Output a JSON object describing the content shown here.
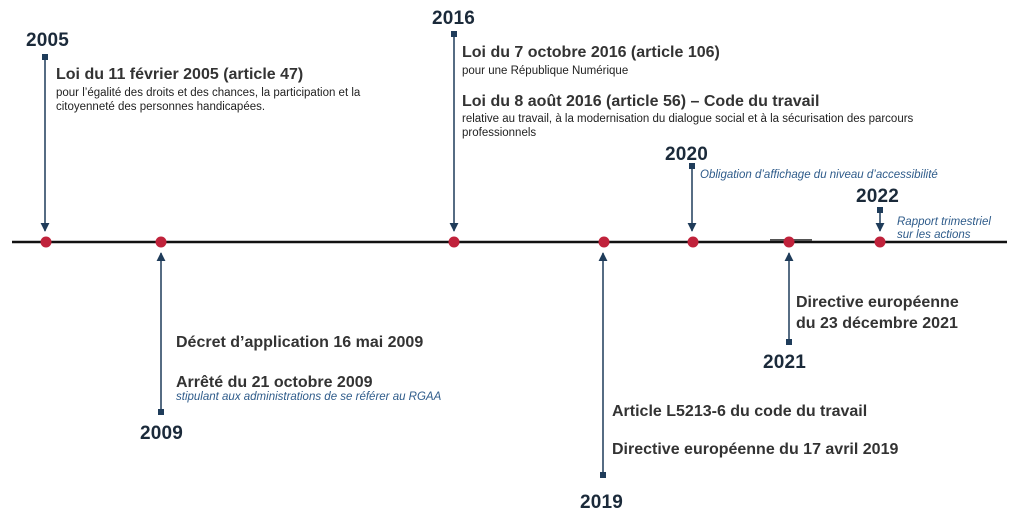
{
  "colors": {
    "axis": "#111111",
    "node": "#c0223b",
    "connector": "#1f3c5a",
    "note": "#2e5b8a",
    "year": "#1b2a3a"
  },
  "timeline": {
    "y2005": {
      "year": "2005",
      "title": "Loi du 11 février 2005 (article 47)",
      "desc": "pour l’égalité des droits et des chances, la participation et la citoyenneté des personnes handicapées."
    },
    "y2009": {
      "year": "2009",
      "decret": "Décret d’application 16 mai 2009",
      "arrete": "Arrêté du 21 octobre 2009",
      "note": "stipulant aux administrations de se référer au RGAA"
    },
    "y2016": {
      "year": "2016",
      "loi1_title": "Loi du 7 octobre 2016 (article 106)",
      "loi1_desc": "pour une République Numérique",
      "loi2_title": "Loi du 8 août 2016 (article 56) – Code du travail",
      "loi2_desc": "relative au travail, à la modernisation du dialogue social et à la sécurisation des parcours professionnels"
    },
    "y2019": {
      "year": "2019",
      "article": "Article L5213-6 du code du travail",
      "directive": "Directive européenne du 17 avril 2019"
    },
    "y2020": {
      "year": "2020",
      "note": "Obligation d’affichage du niveau d’accessibilité"
    },
    "y2021": {
      "year": "2021",
      "line1": "Directive européenne",
      "line2": "du 23 décembre 2021"
    },
    "y2022": {
      "year": "2022",
      "note1": "Rapport trimestriel",
      "note2": "sur les actions"
    }
  }
}
